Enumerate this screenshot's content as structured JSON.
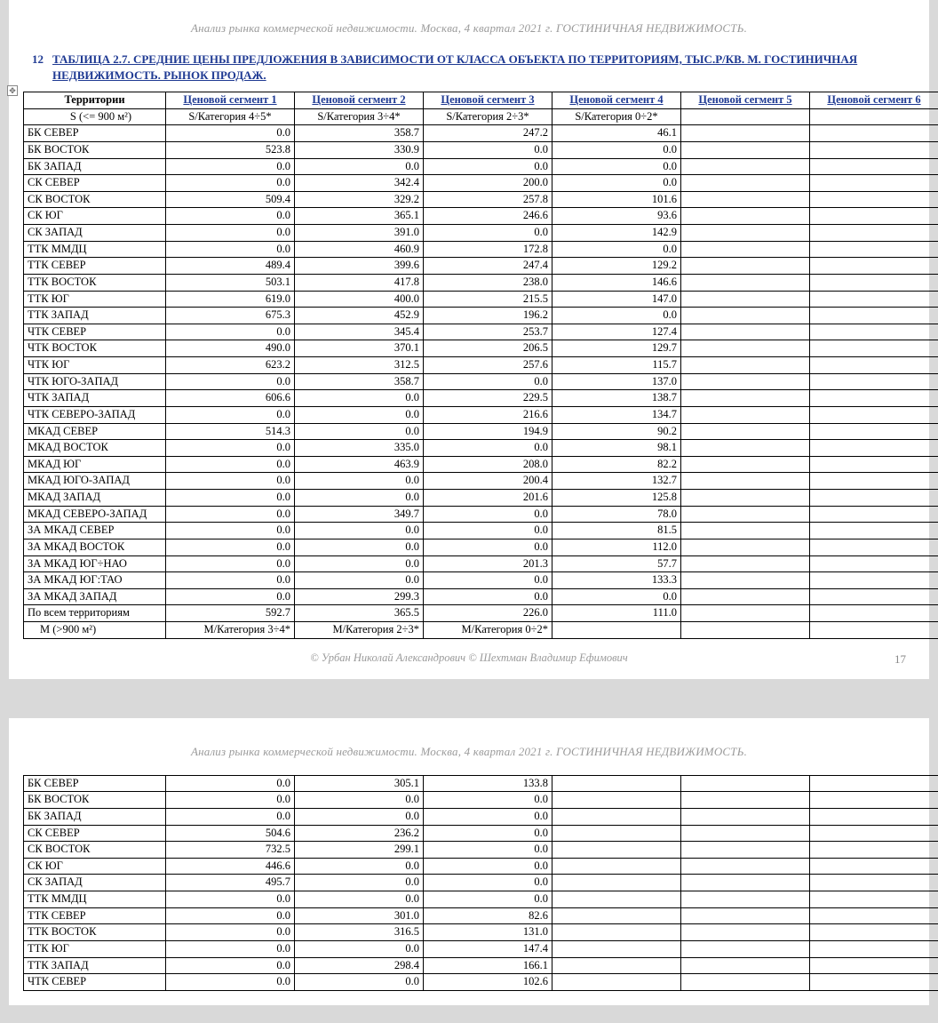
{
  "header": "Анализ рынка коммерческой недвижимости.   Москва, 4 квартал 2021 г.   ГОСТИНИЧНАЯ НЕДВИЖИМОСТЬ.",
  "section_number": "12",
  "section_title": "ТАБЛИЦА 2.7. СРЕДНИЕ ЦЕНЫ ПРЕДЛОЖЕНИЯ В ЗАВИСИМОСТИ ОТ КЛАССА ОБЪЕКТА ПО ТЕРРИТОРИЯМ, ТЫС.Р/КВ. М. ГОСТИНИЧНАЯ НЕДВИЖИМОСТЬ. РЫНОК ПРОДАЖ.",
  "page_number": "17",
  "footer_credit": "© Урбан Николай Александрович   © Шехтман Владимир Ефимович",
  "table1": {
    "head_row1": [
      "Территории",
      "Ценовой сегмент 1",
      "Ценовой сегмент 2",
      "Ценовой сегмент 3",
      "Ценовой сегмент 4",
      "Ценовой сегмент 5",
      "Ценовой сегмент 6"
    ],
    "head_row2": [
      "S (<= 900 м²)",
      "S/Категория 4÷5*",
      "S/Категория 3÷4*",
      "S/Категория 2÷3*",
      "S/Категория 0÷2*",
      "",
      ""
    ],
    "rows": [
      {
        "l": "БК СЕВЕР",
        "v": [
          "0.0",
          "358.7",
          "247.2",
          "46.1",
          "",
          ""
        ]
      },
      {
        "l": "БК ВОСТОК",
        "v": [
          "523.8",
          "330.9",
          "0.0",
          "0.0",
          "",
          ""
        ]
      },
      {
        "l": "БК ЗАПАД",
        "v": [
          "0.0",
          "0.0",
          "0.0",
          "0.0",
          "",
          ""
        ]
      },
      {
        "l": "СК СЕВЕР",
        "v": [
          "0.0",
          "342.4",
          "200.0",
          "0.0",
          "",
          ""
        ]
      },
      {
        "l": "СК ВОСТОК",
        "v": [
          "509.4",
          "329.2",
          "257.8",
          "101.6",
          "",
          ""
        ]
      },
      {
        "l": "СК ЮГ",
        "v": [
          "0.0",
          "365.1",
          "246.6",
          "93.6",
          "",
          ""
        ]
      },
      {
        "l": "СК ЗАПАД",
        "v": [
          "0.0",
          "391.0",
          "0.0",
          "142.9",
          "",
          ""
        ]
      },
      {
        "l": "ТТК ММДЦ",
        "v": [
          "0.0",
          "460.9",
          "172.8",
          "0.0",
          "",
          ""
        ]
      },
      {
        "l": "ТТК СЕВЕР",
        "v": [
          "489.4",
          "399.6",
          "247.4",
          "129.2",
          "",
          ""
        ]
      },
      {
        "l": "ТТК ВОСТОК",
        "v": [
          "503.1",
          "417.8",
          "238.0",
          "146.6",
          "",
          ""
        ]
      },
      {
        "l": "ТТК ЮГ",
        "v": [
          "619.0",
          "400.0",
          "215.5",
          "147.0",
          "",
          ""
        ]
      },
      {
        "l": "ТТК ЗАПАД",
        "v": [
          "675.3",
          "452.9",
          "196.2",
          "0.0",
          "",
          ""
        ]
      },
      {
        "l": "ЧТК СЕВЕР",
        "v": [
          "0.0",
          "345.4",
          "253.7",
          "127.4",
          "",
          ""
        ]
      },
      {
        "l": "ЧТК ВОСТОК",
        "v": [
          "490.0",
          "370.1",
          "206.5",
          "129.7",
          "",
          ""
        ]
      },
      {
        "l": "ЧТК ЮГ",
        "v": [
          "623.2",
          "312.5",
          "257.6",
          "115.7",
          "",
          ""
        ]
      },
      {
        "l": "ЧТК ЮГО-ЗАПАД",
        "v": [
          "0.0",
          "358.7",
          "0.0",
          "137.0",
          "",
          ""
        ]
      },
      {
        "l": "ЧТК ЗАПАД",
        "v": [
          "606.6",
          "0.0",
          "229.5",
          "138.7",
          "",
          ""
        ]
      },
      {
        "l": "ЧТК СЕВЕРО-ЗАПАД",
        "v": [
          "0.0",
          "0.0",
          "216.6",
          "134.7",
          "",
          ""
        ]
      },
      {
        "l": "МКАД СЕВЕР",
        "v": [
          "514.3",
          "0.0",
          "194.9",
          "90.2",
          "",
          ""
        ]
      },
      {
        "l": "МКАД ВОСТОК",
        "v": [
          "0.0",
          "335.0",
          "0.0",
          "98.1",
          "",
          ""
        ]
      },
      {
        "l": "МКАД ЮГ",
        "v": [
          "0.0",
          "463.9",
          "208.0",
          "82.2",
          "",
          ""
        ]
      },
      {
        "l": "МКАД ЮГО-ЗАПАД",
        "v": [
          "0.0",
          "0.0",
          "200.4",
          "132.7",
          "",
          ""
        ]
      },
      {
        "l": "МКАД ЗАПАД",
        "v": [
          "0.0",
          "0.0",
          "201.6",
          "125.8",
          "",
          ""
        ]
      },
      {
        "l": "МКАД СЕВЕРО-ЗАПАД",
        "v": [
          "0.0",
          "349.7",
          "0.0",
          "78.0",
          "",
          ""
        ]
      },
      {
        "l": "ЗА МКАД СЕВЕР",
        "v": [
          "0.0",
          "0.0",
          "0.0",
          "81.5",
          "",
          ""
        ]
      },
      {
        "l": "ЗА МКАД ВОСТОК",
        "v": [
          "0.0",
          "0.0",
          "0.0",
          "112.0",
          "",
          ""
        ]
      },
      {
        "l": "ЗА МКАД ЮГ÷НАО",
        "v": [
          "0.0",
          "0.0",
          "201.3",
          "57.7",
          "",
          ""
        ]
      },
      {
        "l": "ЗА МКАД ЮГ:ТАО",
        "v": [
          "0.0",
          "0.0",
          "0.0",
          "133.3",
          "",
          ""
        ]
      },
      {
        "l": "ЗА МКАД ЗАПАД",
        "v": [
          "0.0",
          "299.3",
          "0.0",
          "0.0",
          "",
          ""
        ]
      },
      {
        "l": "По всем территориям",
        "v": [
          "592.7",
          "365.5",
          "226.0",
          "111.0",
          "",
          ""
        ]
      }
    ],
    "foot_row": [
      "M (>900 м²)",
      "M/Категория 3÷4*",
      "M/Категория 2÷3*",
      "M/Категория 0÷2*",
      "",
      "",
      ""
    ]
  },
  "table2": {
    "rows": [
      {
        "l": "БК СЕВЕР",
        "v": [
          "0.0",
          "305.1",
          "133.8",
          "",
          "",
          ""
        ]
      },
      {
        "l": "БК ВОСТОК",
        "v": [
          "0.0",
          "0.0",
          "0.0",
          "",
          "",
          ""
        ]
      },
      {
        "l": "БК ЗАПАД",
        "v": [
          "0.0",
          "0.0",
          "0.0",
          "",
          "",
          ""
        ]
      },
      {
        "l": "СК СЕВЕР",
        "v": [
          "504.6",
          "236.2",
          "0.0",
          "",
          "",
          ""
        ]
      },
      {
        "l": "СК ВОСТОК",
        "v": [
          "732.5",
          "299.1",
          "0.0",
          "",
          "",
          ""
        ]
      },
      {
        "l": "СК ЮГ",
        "v": [
          "446.6",
          "0.0",
          "0.0",
          "",
          "",
          ""
        ]
      },
      {
        "l": "СК ЗАПАД",
        "v": [
          "495.7",
          "0.0",
          "0.0",
          "",
          "",
          ""
        ]
      },
      {
        "l": "ТТК ММДЦ",
        "v": [
          "0.0",
          "0.0",
          "0.0",
          "",
          "",
          ""
        ]
      },
      {
        "l": "ТТК СЕВЕР",
        "v": [
          "0.0",
          "301.0",
          "82.6",
          "",
          "",
          ""
        ]
      },
      {
        "l": "ТТК ВОСТОК",
        "v": [
          "0.0",
          "316.5",
          "131.0",
          "",
          "",
          ""
        ]
      },
      {
        "l": "ТТК ЮГ",
        "v": [
          "0.0",
          "0.0",
          "147.4",
          "",
          "",
          ""
        ]
      },
      {
        "l": "ТТК ЗАПАД",
        "v": [
          "0.0",
          "298.4",
          "166.1",
          "",
          "",
          ""
        ]
      },
      {
        "l": "ЧТК СЕВЕР",
        "v": [
          "0.0",
          "0.0",
          "102.6",
          "",
          "",
          ""
        ]
      }
    ]
  }
}
